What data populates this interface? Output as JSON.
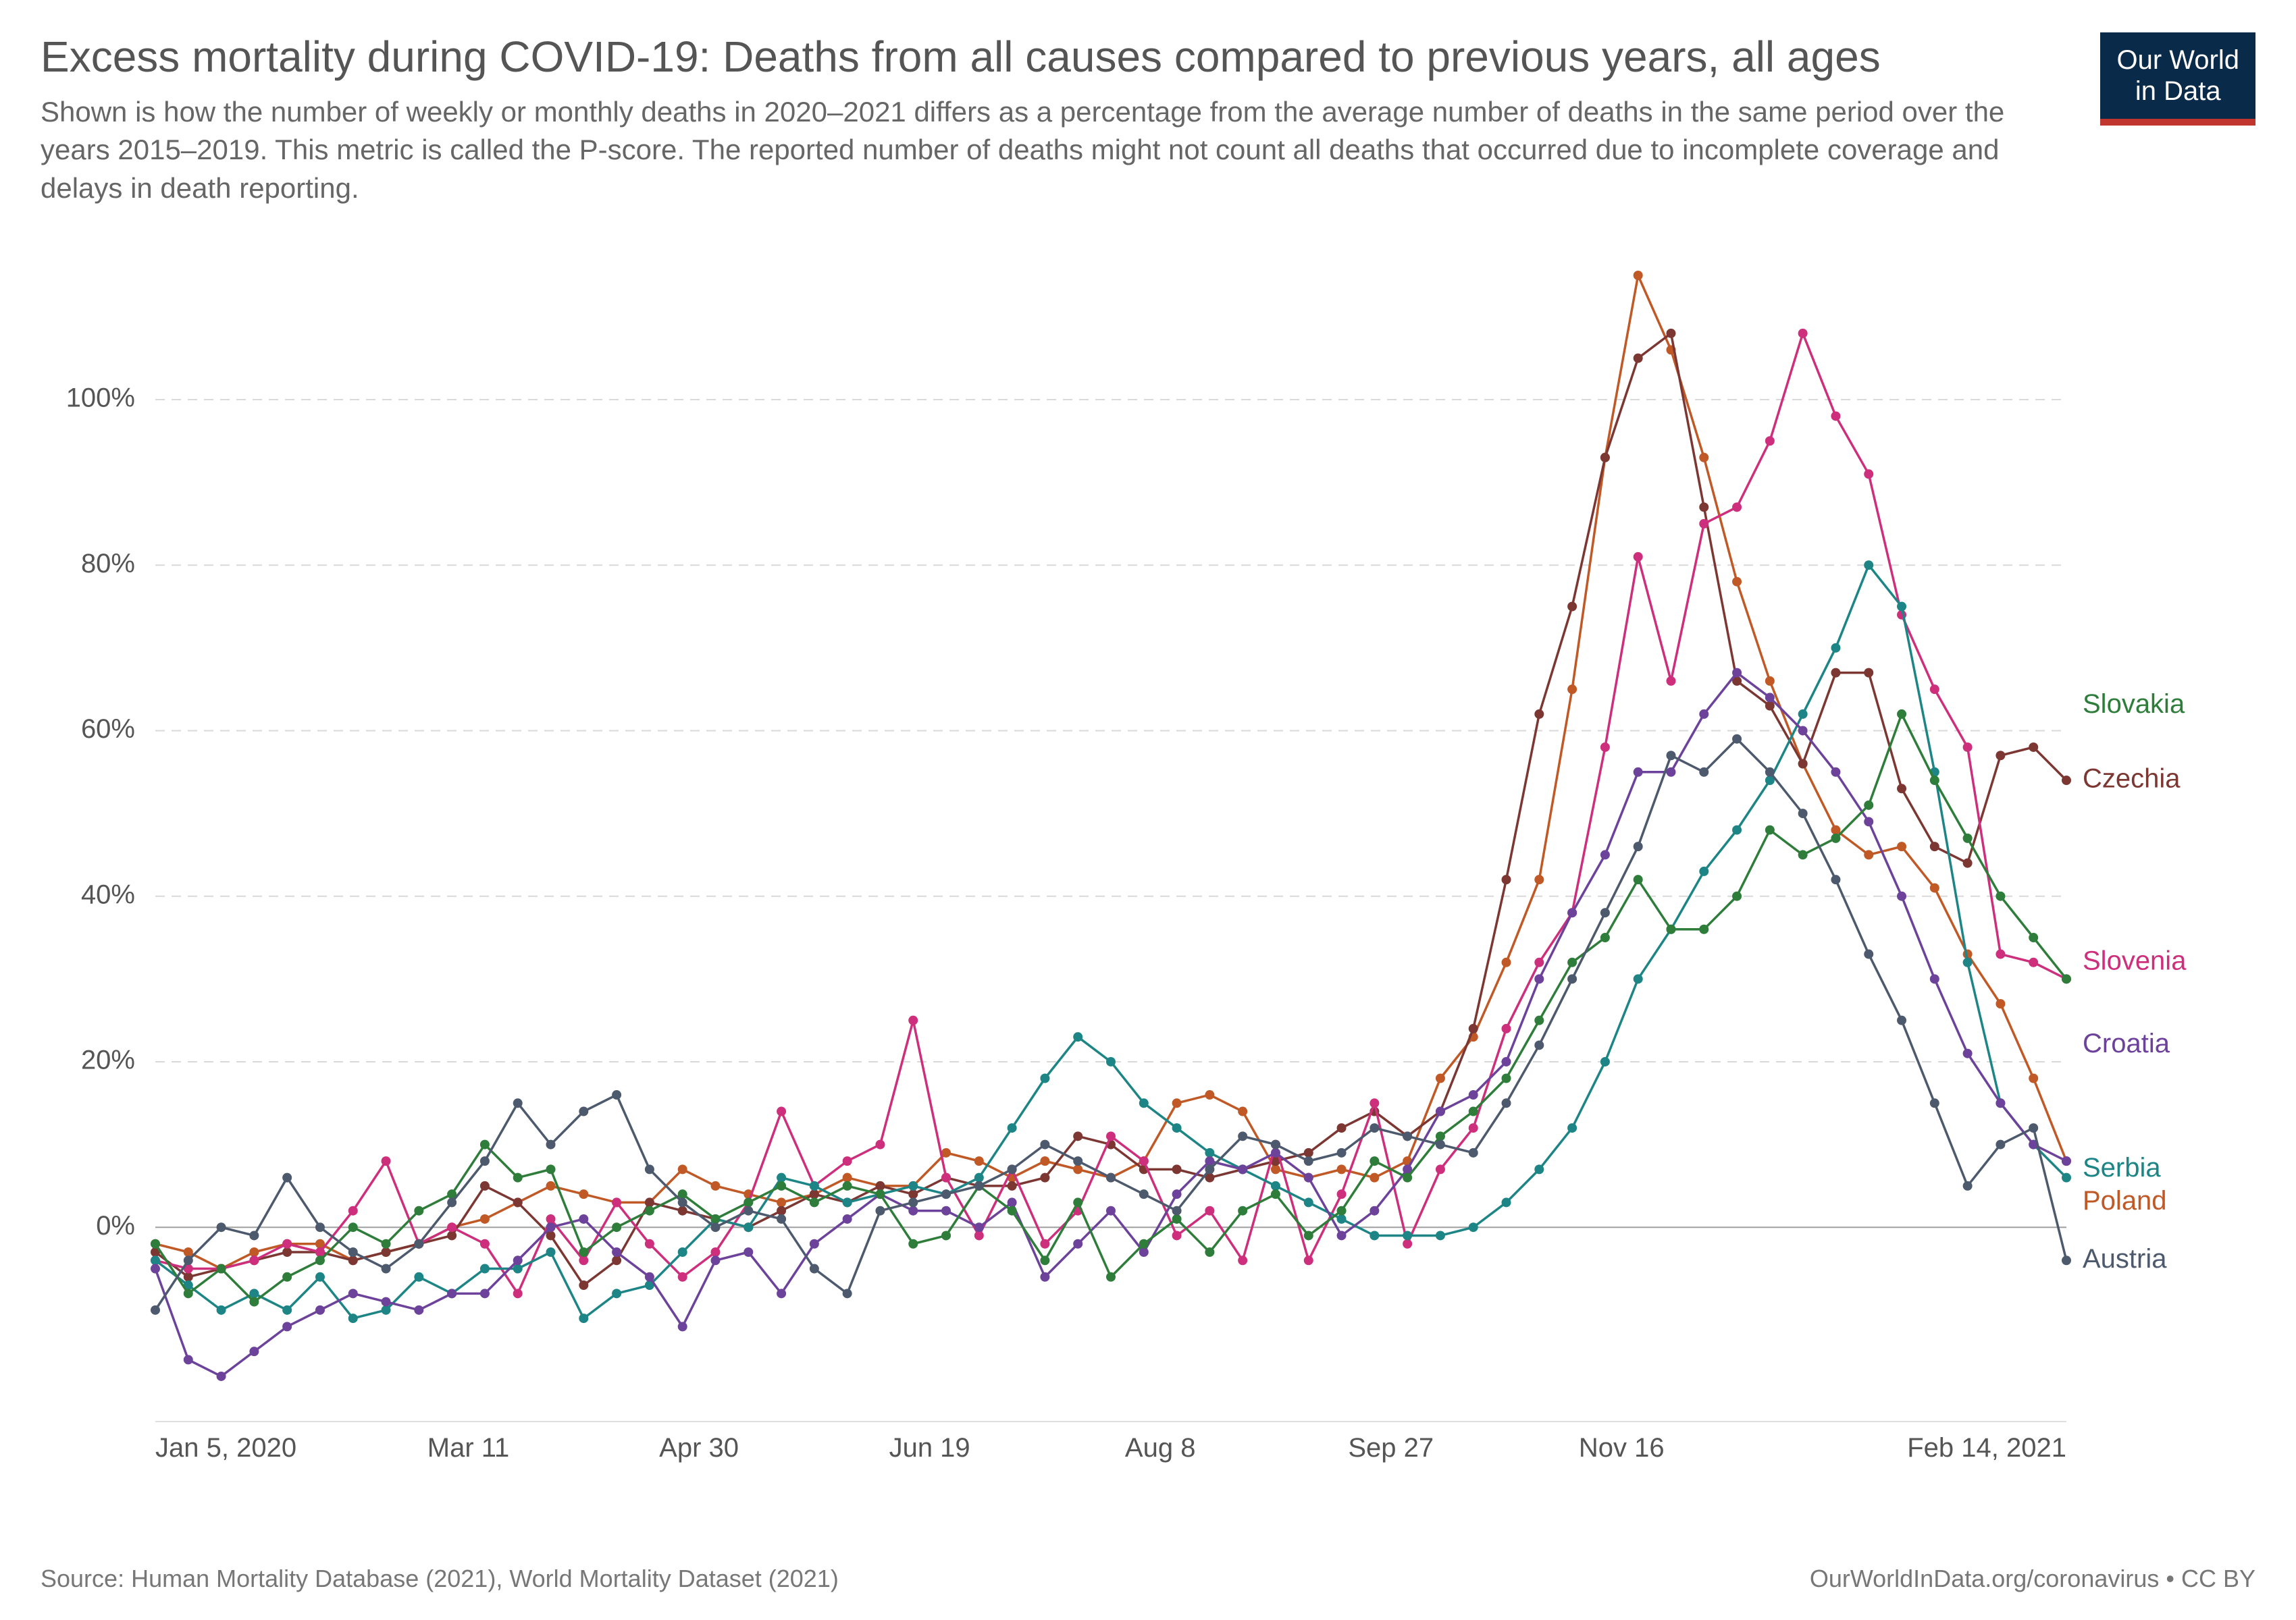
{
  "header": {
    "title": "Excess mortality during COVID-19: Deaths from all causes compared to previous years, all ages",
    "subtitle": "Shown is how the number of weekly or monthly deaths in 2020–2021 differs as a percentage from the average number of deaths in the same period over the years 2015–2019. This metric is called the P-score. The reported number of deaths might not count all deaths that occurred due to incomplete coverage and delays in death reporting.",
    "logo_line1": "Our World",
    "logo_line2": "in Data",
    "logo_bg": "#0a2a4a",
    "logo_accent": "#c0352e"
  },
  "footer": {
    "source": "Source: Human Mortality Database (2021), World Mortality Dataset (2021)",
    "attribution": "OurWorldInData.org/coronavirus • CC BY"
  },
  "chart": {
    "type": "line",
    "background_color": "#ffffff",
    "grid_color": "#d9d9d9",
    "axis_text_color": "#555555",
    "zero_line_color": "#a0a0a0",
    "title_fontsize": 64,
    "subtitle_fontsize": 42,
    "axis_label_fontsize": 40,
    "series_label_fontsize": 40,
    "line_width": 3.5,
    "marker_radius": 7,
    "ylim": [
      -22,
      115
    ],
    "ytick_step": 20,
    "yticks": [
      0,
      20,
      40,
      60,
      80,
      100
    ],
    "ytick_labels": [
      "0%",
      "20%",
      "40%",
      "60%",
      "80%",
      "100%"
    ],
    "x_axis": {
      "start_week": 1,
      "end_week": 59,
      "ticks": [
        1,
        10.5,
        17.5,
        24.5,
        31.5,
        38.5,
        45.5,
        59
      ],
      "tick_labels": [
        "Jan 5, 2020",
        "Mar 11",
        "Apr 30",
        "Jun 19",
        "Aug 8",
        "Sep 27",
        "Nov 16",
        "Feb 14, 2021"
      ]
    },
    "series": [
      {
        "name": "Poland",
        "color": "#c05926",
        "label_y": 3,
        "data": [
          -2,
          -3,
          -5,
          -3,
          -2,
          -2,
          -4,
          -3,
          -2,
          0,
          1,
          3,
          5,
          4,
          3,
          3,
          7,
          5,
          4,
          3,
          4,
          6,
          5,
          5,
          9,
          8,
          6,
          8,
          7,
          6,
          8,
          15,
          16,
          14,
          7,
          6,
          7,
          6,
          8,
          18,
          23,
          32,
          42,
          65,
          93,
          115,
          106,
          93,
          78,
          66,
          56,
          48,
          45,
          46,
          41,
          33,
          27,
          18,
          8
        ]
      },
      {
        "name": "Czechia",
        "color": "#7d3733",
        "label_y": 54,
        "data": [
          -3,
          -6,
          -5,
          -4,
          -3,
          -3,
          -4,
          -3,
          -2,
          -1,
          5,
          3,
          -1,
          -7,
          -4,
          3,
          2,
          1,
          0,
          2,
          4,
          3,
          5,
          4,
          6,
          5,
          5,
          6,
          11,
          10,
          7,
          7,
          6,
          7,
          8,
          9,
          12,
          14,
          11,
          14,
          24,
          42,
          62,
          75,
          93,
          105,
          108,
          87,
          66,
          63,
          56,
          67,
          67,
          53,
          46,
          44,
          57,
          58,
          54
        ]
      },
      {
        "name": "Slovenia",
        "color": "#ce2f7d",
        "label_y": 32,
        "data": [
          -4,
          -5,
          -5,
          -4,
          -2,
          -3,
          2,
          8,
          -2,
          0,
          -2,
          -8,
          1,
          -4,
          3,
          -2,
          -6,
          -3,
          3,
          14,
          5,
          8,
          10,
          25,
          6,
          -1,
          7,
          -2,
          2,
          11,
          8,
          -1,
          2,
          -4,
          10,
          -4,
          4,
          15,
          -2,
          7,
          12,
          24,
          32,
          38,
          58,
          81,
          66,
          85,
          87,
          95,
          108,
          98,
          91,
          74,
          65,
          58,
          33,
          32,
          30
        ]
      },
      {
        "name": "Serbia",
        "color": "#1d8585",
        "label_y": 7,
        "data": [
          -4,
          -7,
          -10,
          -8,
          -10,
          -6,
          -11,
          -10,
          -6,
          -8,
          -5,
          -5,
          -3,
          -11,
          -8,
          -7,
          -3,
          1,
          0,
          6,
          5,
          3,
          4,
          5,
          4,
          6,
          12,
          18,
          23,
          20,
          15,
          12,
          9,
          7,
          5,
          3,
          1,
          -1,
          -1,
          -1,
          0,
          3,
          7,
          12,
          20,
          30,
          36,
          43,
          48,
          54,
          62,
          70,
          80,
          75,
          55,
          32,
          15,
          10,
          6
        ]
      },
      {
        "name": "Croatia",
        "color": "#6c429b",
        "label_y": 22,
        "data": [
          -5,
          -16,
          -18,
          -15,
          -12,
          -10,
          -8,
          -9,
          -10,
          -8,
          -8,
          -4,
          0,
          1,
          -3,
          -6,
          -12,
          -4,
          -3,
          -8,
          -2,
          1,
          4,
          2,
          2,
          0,
          3,
          -6,
          -2,
          2,
          -3,
          4,
          8,
          7,
          9,
          6,
          -1,
          2,
          7,
          14,
          16,
          20,
          30,
          38,
          45,
          55,
          55,
          62,
          67,
          64,
          60,
          55,
          49,
          40,
          30,
          21,
          15,
          10,
          8
        ]
      },
      {
        "name": "Slovakia",
        "color": "#2e7d3a",
        "label_y": 63,
        "data": [
          -2,
          -8,
          -5,
          -9,
          -6,
          -4,
          0,
          -2,
          2,
          4,
          10,
          6,
          7,
          -3,
          0,
          2,
          4,
          1,
          3,
          5,
          3,
          5,
          4,
          -2,
          -1,
          5,
          2,
          -4,
          3,
          -6,
          -2,
          1,
          -3,
          2,
          4,
          -1,
          2,
          8,
          6,
          11,
          14,
          18,
          25,
          32,
          35,
          42,
          36,
          36,
          40,
          48,
          45,
          47,
          51,
          62,
          54,
          47,
          40,
          35,
          30
        ]
      },
      {
        "name": "Austria",
        "color": "#4d5a6e",
        "label_y": -4,
        "data": [
          -10,
          -4,
          0,
          -1,
          6,
          0,
          -3,
          -5,
          -2,
          3,
          8,
          15,
          10,
          14,
          16,
          7,
          3,
          0,
          2,
          1,
          -5,
          -8,
          2,
          3,
          4,
          5,
          7,
          10,
          8,
          6,
          4,
          2,
          7,
          11,
          10,
          8,
          9,
          12,
          11,
          10,
          9,
          15,
          22,
          30,
          38,
          46,
          57,
          55,
          59,
          55,
          50,
          42,
          33,
          25,
          15,
          5,
          10,
          12,
          -4
        ]
      }
    ],
    "legend_order": [
      "Slovakia",
      "Czechia",
      "Slovenia",
      "Croatia",
      "Serbia",
      "Poland",
      "Austria"
    ]
  }
}
